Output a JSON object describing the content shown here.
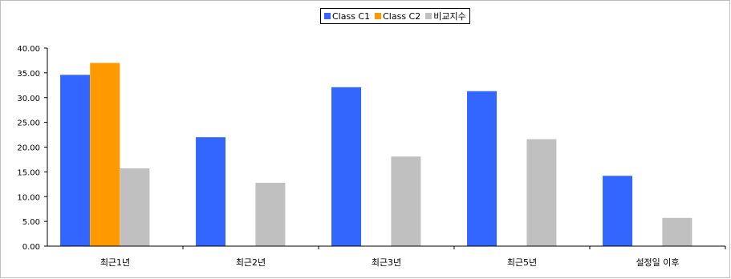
{
  "chart_data": {
    "type": "bar",
    "title": "",
    "xlabel": "",
    "ylabel": "",
    "categories": [
      "최근1년",
      "최근2년",
      "최근3년",
      "최근5년",
      "설정일 이후"
    ],
    "series": [
      {
        "name": "Class C1",
        "color": "#3366ff",
        "values": [
          34.6,
          22.0,
          32.1,
          31.3,
          14.2
        ]
      },
      {
        "name": "Class C2",
        "color": "#ff9900",
        "values": [
          37.0,
          null,
          null,
          null,
          null
        ]
      },
      {
        "name": "비교지수",
        "color": "#c0c0c0",
        "values": [
          15.7,
          12.8,
          18.1,
          21.6,
          5.7
        ]
      }
    ],
    "ylim": [
      0,
      40
    ],
    "yticks": [
      "0.00",
      "5.00",
      "10.00",
      "15.00",
      "20.00",
      "25.00",
      "30.00",
      "35.00",
      "40.00"
    ],
    "grid": false,
    "legend_position": "top-center"
  }
}
